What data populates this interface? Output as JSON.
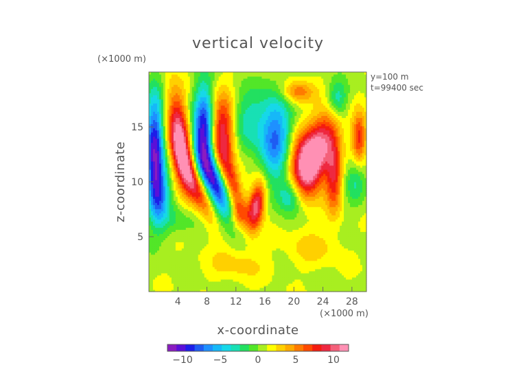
{
  "chart_data": {
    "type": "heatmap",
    "title": "vertical velocity",
    "xlabel": "x-coordinate",
    "ylabel": "z-coordinate",
    "x_unit": "(×1000 m)",
    "y_unit": "(×1000 m)",
    "annotations": [
      "y=100 m",
      "t=99400 sec"
    ],
    "xlim": [
      0,
      30
    ],
    "ylim": [
      0,
      20
    ],
    "x_ticks": [
      4,
      8,
      12,
      16,
      20,
      24,
      28
    ],
    "y_ticks": [
      5,
      10,
      15
    ],
    "colorbar": {
      "range": [
        -12,
        12
      ],
      "tick_values": [
        -10,
        -5,
        0,
        5,
        10
      ],
      "tick_labels": [
        "−10",
        "−5",
        "0",
        "5",
        "10"
      ],
      "colors": [
        "#8a1cc0",
        "#5a10d8",
        "#1c1ee8",
        "#1e5cf2",
        "#1e90ff",
        "#16b8f8",
        "#16d8e8",
        "#18e0b4",
        "#22e060",
        "#52e628",
        "#a8ee20",
        "#ffff00",
        "#ffd000",
        "#ffaa00",
        "#ff7a00",
        "#ff4a00",
        "#f41c10",
        "#ee2840",
        "#f4607a",
        "#ff90b4"
      ]
    },
    "features": [
      {
        "x": 0.8,
        "z": 13.0,
        "value": -11,
        "sx": 0.9,
        "sz": 3.5,
        "tilt": 0
      },
      {
        "x": 1.5,
        "z": 9.0,
        "value": -6,
        "sx": 1.0,
        "sz": 2.0,
        "tilt": 0
      },
      {
        "x": 4.3,
        "z": 13.8,
        "value": 11,
        "sx": 1.0,
        "sz": 2.9,
        "tilt": 0.15
      },
      {
        "x": 6.3,
        "z": 9.8,
        "value": 8,
        "sx": 1.0,
        "sz": 2.3,
        "tilt": 0.6
      },
      {
        "x": 7.6,
        "z": 14.5,
        "value": -11,
        "sx": 1.0,
        "sz": 3.0,
        "tilt": 0
      },
      {
        "x": 9.2,
        "z": 9.8,
        "value": -10,
        "sx": 1.0,
        "sz": 2.3,
        "tilt": 0.5
      },
      {
        "x": 10.2,
        "z": 14.5,
        "value": 9,
        "sx": 1.2,
        "sz": 2.4,
        "tilt": 0
      },
      {
        "x": 11.5,
        "z": 10.0,
        "value": 6,
        "sx": 0.8,
        "sz": 1.8,
        "tilt": 0.4
      },
      {
        "x": 12.5,
        "z": 7.0,
        "value": 4,
        "sx": 0.8,
        "sz": 0.9,
        "tilt": 0
      },
      {
        "x": 13.8,
        "z": 15.5,
        "value": -4,
        "sx": 1.8,
        "sz": 2.0,
        "tilt": 0
      },
      {
        "x": 14.8,
        "z": 7.8,
        "value": 10,
        "sx": 0.8,
        "sz": 1.6,
        "tilt": -0.2
      },
      {
        "x": 17.5,
        "z": 14.0,
        "value": -8,
        "sx": 1.5,
        "sz": 2.8,
        "tilt": 0
      },
      {
        "x": 19.5,
        "z": 8.8,
        "value": -5,
        "sx": 1.2,
        "sz": 1.2,
        "tilt": 0
      },
      {
        "x": 20.5,
        "z": 18.2,
        "value": 5,
        "sx": 1.5,
        "sz": 0.7,
        "tilt": 0
      },
      {
        "x": 21.5,
        "z": 11.5,
        "value": 9,
        "sx": 1.6,
        "sz": 2.0,
        "tilt": 0
      },
      {
        "x": 23.5,
        "z": 13.2,
        "value": 9,
        "sx": 1.5,
        "sz": 2.4,
        "tilt": -0.4
      },
      {
        "x": 25.5,
        "z": 10.5,
        "value": 7,
        "sx": 0.8,
        "sz": 2.4,
        "tilt": 0
      },
      {
        "x": 26.0,
        "z": 17.5,
        "value": -5,
        "sx": 1.0,
        "sz": 1.2,
        "tilt": 0
      },
      {
        "x": 29.0,
        "z": 14.0,
        "value": 7,
        "sx": 0.7,
        "sz": 1.6,
        "tilt": 0
      },
      {
        "x": 28.5,
        "z": 10.0,
        "value": -3,
        "sx": 1.0,
        "sz": 1.5,
        "tilt": 0
      },
      {
        "x": 22.5,
        "z": 4.0,
        "value": 2,
        "sx": 2.5,
        "sz": 1.2,
        "tilt": 0
      },
      {
        "x": 12.0,
        "z": 2.5,
        "value": 2,
        "sx": 3.0,
        "sz": 1.0,
        "tilt": 0
      },
      {
        "x": 4.0,
        "z": 6.5,
        "value": -2,
        "sx": 2.0,
        "sz": 1.0,
        "tilt": 0
      }
    ]
  }
}
